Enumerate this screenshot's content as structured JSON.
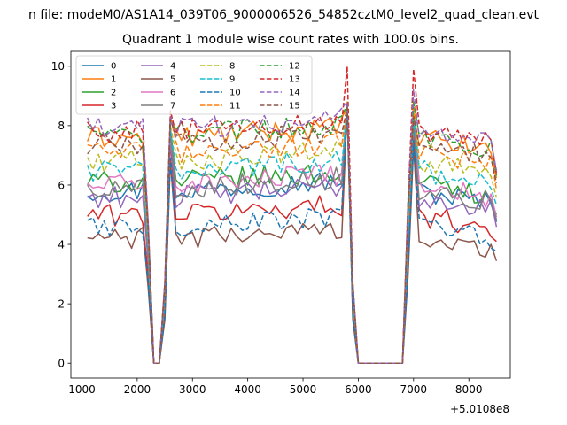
{
  "figure": {
    "suptitle": "n file: modeM0/AS1A14_039T06_9000006526_54852cztM0_level2_quad_clean.evt"
  },
  "chart_data": {
    "type": "line",
    "title": "Quadrant 1 module wise count rates with 100.0s bins.",
    "xlabel": "",
    "ylabel": "",
    "x_offset_label": "+5.0108e8",
    "xlim": [
      800,
      8750
    ],
    "ylim": [
      -0.5,
      10.5
    ],
    "xticks": [
      1000,
      2000,
      3000,
      4000,
      5000,
      6000,
      7000,
      8000
    ],
    "xtick_labels": [
      "1000",
      "2000",
      "3000",
      "4000",
      "5000",
      "6000",
      "7000",
      "8000"
    ],
    "yticks": [
      0,
      2,
      4,
      6,
      8,
      10
    ],
    "ytick_labels": [
      "0",
      "2",
      "4",
      "6",
      "8",
      "10"
    ],
    "grid": false,
    "legend": {
      "placement": "top-left",
      "columns": 4
    },
    "x": [
      1100,
      1200,
      1300,
      1400,
      1500,
      1600,
      1700,
      1800,
      1900,
      2000,
      2100,
      2200,
      2300,
      2400,
      2500,
      2600,
      2700,
      2800,
      2900,
      3000,
      3100,
      3200,
      3300,
      3400,
      3500,
      3600,
      3700,
      3800,
      3900,
      4000,
      4100,
      4200,
      4300,
      4400,
      4500,
      4600,
      4700,
      4800,
      4900,
      5000,
      5100,
      5200,
      5300,
      5400,
      5500,
      5600,
      5700,
      5800,
      5900,
      6000,
      6100,
      6200,
      6300,
      6400,
      6500,
      6600,
      6700,
      6800,
      6900,
      7000,
      7100,
      7200,
      7300,
      7400,
      7500,
      7600,
      7700,
      7800,
      7900,
      8000,
      8100,
      8200,
      8300,
      8400,
      8500
    ],
    "gaps": [
      {
        "down_from": 2200,
        "zero_start": 2300,
        "zero_end": 2400,
        "up_to": 2600
      },
      {
        "down_from": 5800,
        "zero_start": 6000,
        "zero_end": 6800,
        "up_to": 6900
      }
    ],
    "series": [
      {
        "name": "0",
        "color": "#1f77b4",
        "dashed": false,
        "base": 5.8,
        "peak1": 7.8,
        "peak2": 8.6,
        "peak3": 8.5
      },
      {
        "name": "1",
        "color": "#ff7f0e",
        "dashed": false,
        "base": 7.6,
        "peak1": 8.2,
        "peak2": 8.6,
        "peak3": 8.4
      },
      {
        "name": "2",
        "color": "#2ca02c",
        "dashed": false,
        "base": 6.1,
        "peak1": 7.9,
        "peak2": 8.7,
        "peak3": 8.2
      },
      {
        "name": "3",
        "color": "#d62728",
        "dashed": false,
        "base": 5.0,
        "peak1": 7.5,
        "peak2": 8.5,
        "peak3": 7.7
      },
      {
        "name": "4",
        "color": "#9467bd",
        "dashed": false,
        "base": 5.6,
        "peak1": 7.6,
        "peak2": 8.7,
        "peak3": 8.4
      },
      {
        "name": "5",
        "color": "#8c564b",
        "dashed": false,
        "base": 4.2,
        "peak1": 6.8,
        "peak2": 8.6,
        "peak3": 7.3
      },
      {
        "name": "6",
        "color": "#e377c2",
        "dashed": false,
        "base": 6.0,
        "peak1": 7.7,
        "peak2": 8.5,
        "peak3": 8.0
      },
      {
        "name": "7",
        "color": "#7f7f7f",
        "dashed": false,
        "base": 5.9,
        "peak1": 7.9,
        "peak2": 8.6,
        "peak3": 8.1
      },
      {
        "name": "8",
        "color": "#bcbd22",
        "dashed": true,
        "base": 6.8,
        "peak1": 8.0,
        "peak2": 8.8,
        "peak3": 8.6
      },
      {
        "name": "9",
        "color": "#17becf",
        "dashed": true,
        "base": 6.5,
        "peak1": 7.9,
        "peak2": 8.6,
        "peak3": 8.3
      },
      {
        "name": "10",
        "color": "#1f77b4",
        "dashed": true,
        "base": 4.6,
        "peak1": 6.9,
        "peak2": 8.5,
        "peak3": 7.5
      },
      {
        "name": "11",
        "color": "#ff7f0e",
        "dashed": true,
        "base": 7.1,
        "peak1": 8.3,
        "peak2": 8.7,
        "peak3": 8.8
      },
      {
        "name": "12",
        "color": "#2ca02c",
        "dashed": true,
        "base": 7.7,
        "peak1": 8.1,
        "peak2": 8.7,
        "peak3": 8.8
      },
      {
        "name": "13",
        "color": "#d62728",
        "dashed": true,
        "base": 7.8,
        "peak1": 8.5,
        "peak2": 10.0,
        "peak3": 9.9
      },
      {
        "name": "14",
        "color": "#9467bd",
        "dashed": true,
        "base": 7.9,
        "peak1": 8.3,
        "peak2": 8.8,
        "peak3": 9.2
      },
      {
        "name": "15",
        "color": "#8c564b",
        "dashed": true,
        "base": 7.4,
        "peak1": 8.2,
        "peak2": 8.6,
        "peak3": 8.3
      }
    ]
  }
}
